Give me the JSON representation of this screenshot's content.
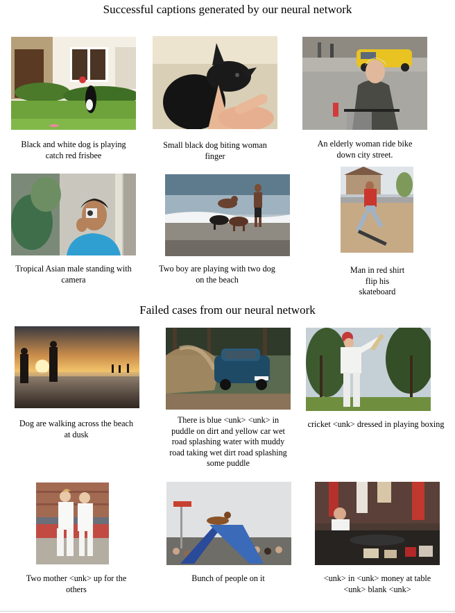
{
  "page": {
    "title": "Successful captions generated by our neural network",
    "failed_title": "Failed cases from our neural network"
  },
  "success": [
    {
      "lines": [
        "Black and white dog is playing",
        "catch red frisbee"
      ],
      "icon": "dog-frisbee-photo"
    },
    {
      "lines": [
        "Small black dog biting woman",
        "finger"
      ],
      "icon": "black-dog-finger-photo"
    },
    {
      "lines": [
        "An elderly woman ride bike",
        "down city street."
      ],
      "icon": "elderly-woman-bike-photo"
    },
    {
      "lines": [
        "Tropical Asian male standing with",
        "camera"
      ],
      "icon": "man-camera-photo"
    },
    {
      "lines": [
        "Two boy are playing with two dog",
        "on the beach"
      ],
      "icon": "boys-dogs-beach-photo"
    },
    {
      "lines": [
        "Man in red shirt",
        "flip his",
        "skateboard"
      ],
      "icon": "skateboard-photo"
    }
  ],
  "failed": [
    {
      "lines": [
        "Dog are walking across the beach",
        "at dusk"
      ],
      "icon": "beach-dusk-photo"
    },
    {
      "lines": [
        "There is blue <unk> <unk> in",
        "puddle on dirt and yellow car wet",
        "road splashing water with muddy",
        "road taking wet dirt road splashing",
        "some puddle"
      ],
      "icon": "car-splash-photo"
    },
    {
      "lines": [
        "cricket <unk> dressed in playing boxing"
      ],
      "icon": "cricket-photo"
    },
    {
      "lines": [
        "Two mother <unk> up for the",
        "others"
      ],
      "icon": "judo-kids-photo"
    },
    {
      "lines": [
        "Bunch of people on it"
      ],
      "icon": "dog-agility-photo"
    },
    {
      "lines": [
        "<unk> in <unk>  money at table",
        "<unk> blank <unk>"
      ],
      "icon": "market-table-photo"
    }
  ]
}
